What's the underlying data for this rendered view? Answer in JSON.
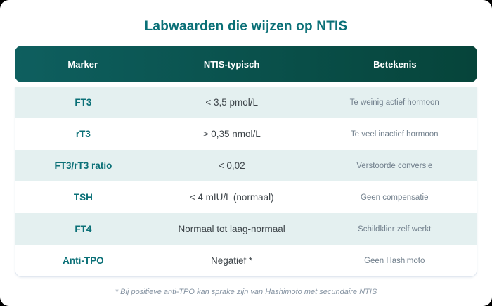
{
  "page": {
    "title": "Labwaarden die wijzen op NTIS",
    "footnote": "* Bij positieve anti-TPO kan sprake zijn van Hashimoto met secundaire NTIS"
  },
  "chart_data": {
    "type": "table",
    "title": "Labwaarden die wijzen op NTIS",
    "columns": [
      "Marker",
      "NTIS-typisch",
      "Betekenis"
    ],
    "rows": [
      {
        "marker": "FT3",
        "value": "< 3,5 pmol/L",
        "meaning": "Te weinig actief hormoon"
      },
      {
        "marker": "rT3",
        "value": "> 0,35 nmol/L",
        "meaning": "Te veel inactief hormoon"
      },
      {
        "marker": "FT3/rT3 ratio",
        "value": "< 0,02",
        "meaning": "Verstoorde conversie"
      },
      {
        "marker": "TSH",
        "value": "< 4 mIU/L (normaal)",
        "meaning": "Geen compensatie"
      },
      {
        "marker": "FT4",
        "value": "Normaal tot laag-normaal",
        "meaning": "Schildklier zelf werkt"
      },
      {
        "marker": "Anti-TPO",
        "value": "Negatief *",
        "meaning": "Geen Hashimoto"
      }
    ],
    "footnote": "* Bij positieve anti-TPO kan sprake zijn van Hashimoto met secundaire NTIS",
    "layout": {
      "header_position": "top",
      "zebra_striping": true,
      "grid": false
    }
  },
  "colors": {
    "accent_teal": "#0b7077",
    "header_gradient_start": "#0e5f5f",
    "header_gradient_end": "#06443a",
    "header_text": "#ffffff",
    "row_alt_bg": "#e4f0f0",
    "value_text": "#3d4449",
    "meaning_text": "#72808d",
    "footnote_text": "#8593a2",
    "card_bg": "#ffffff",
    "page_bg": "#000000"
  }
}
